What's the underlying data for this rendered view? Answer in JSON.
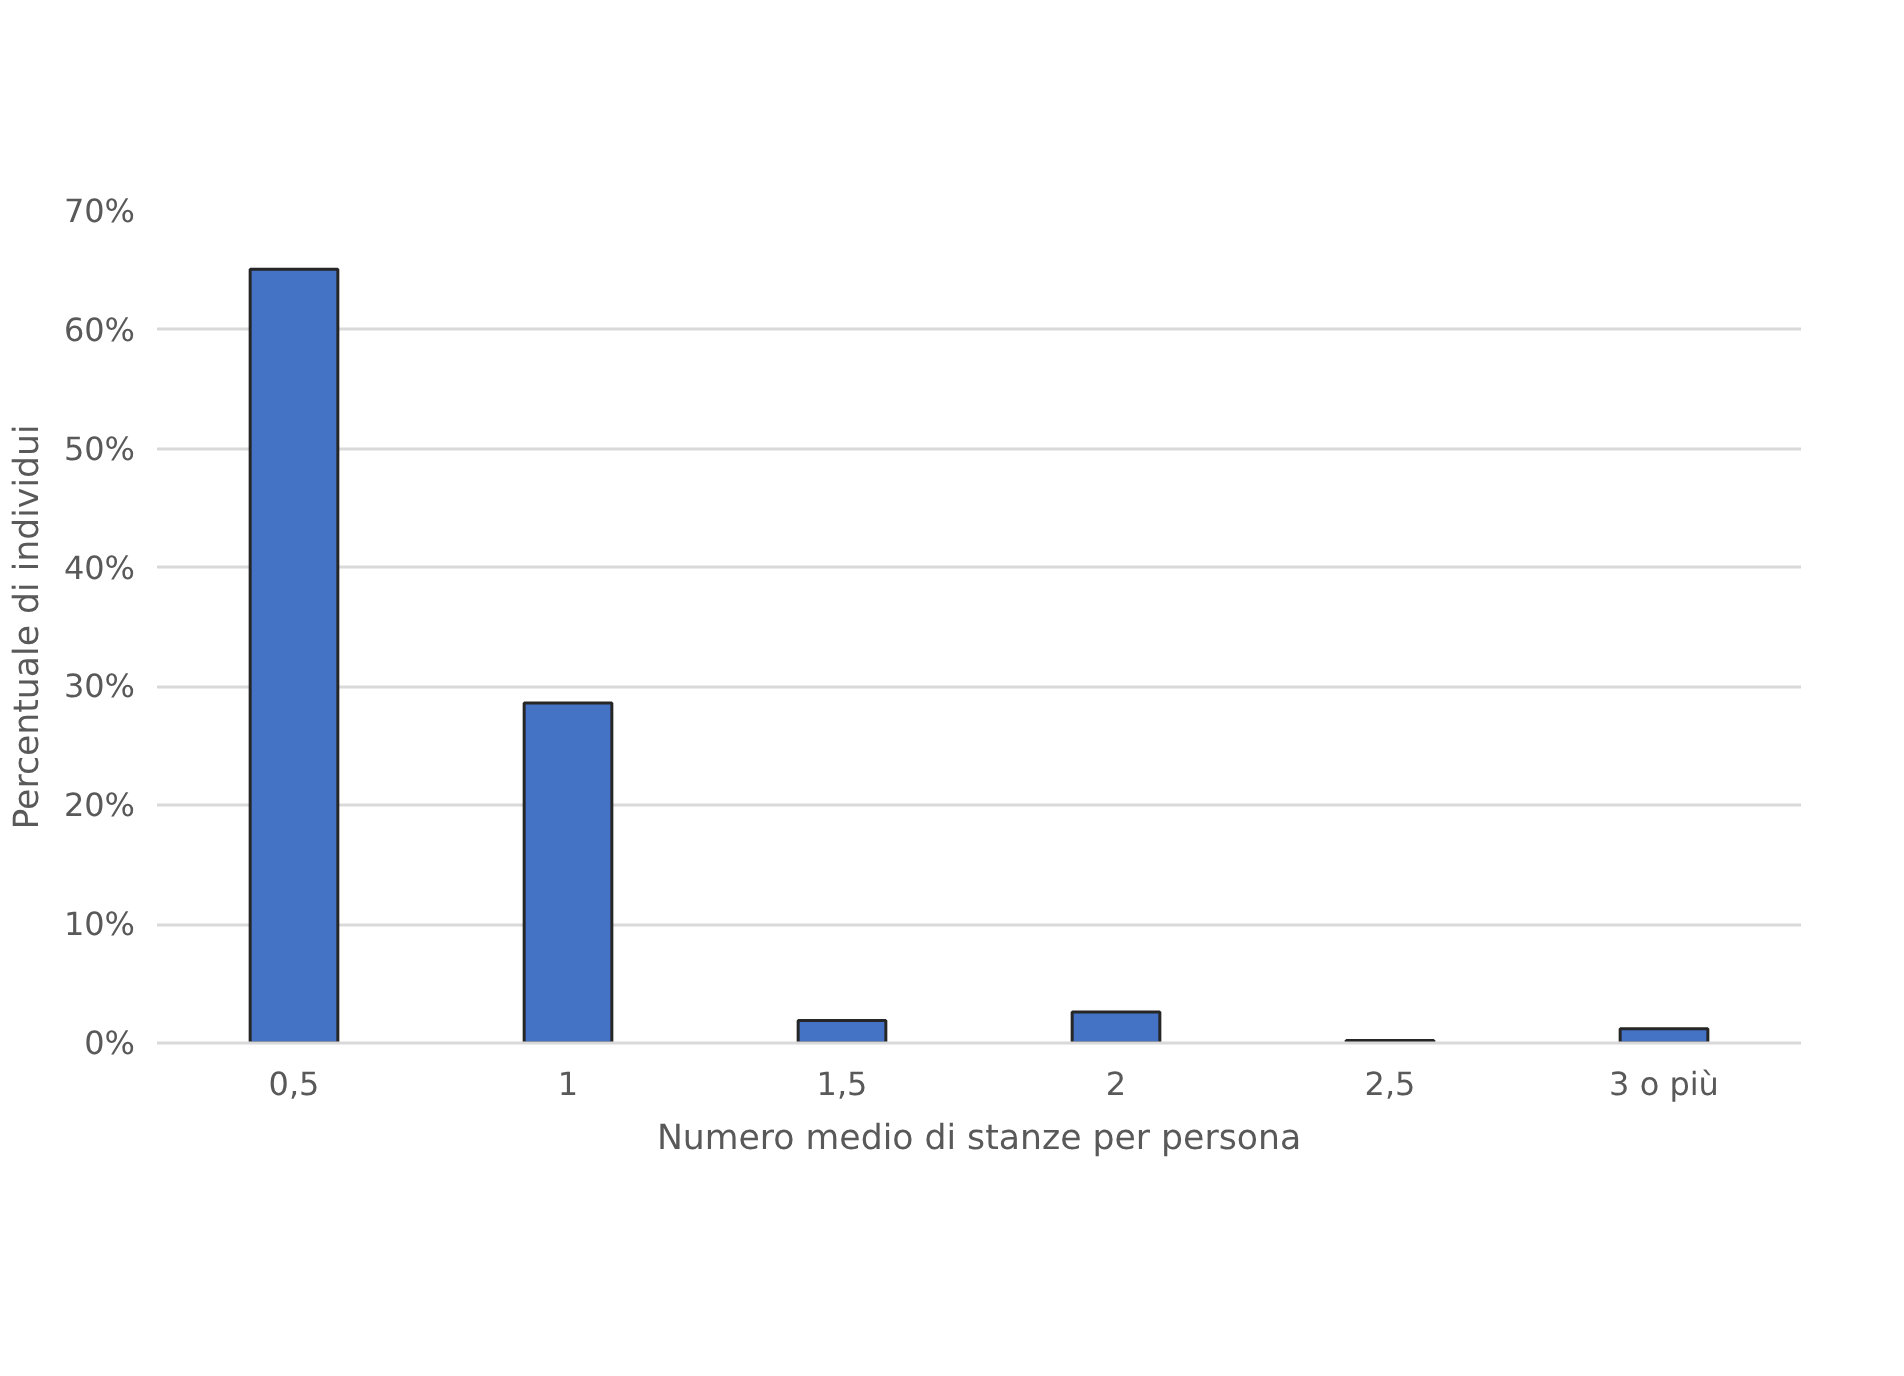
{
  "chart_data": {
    "type": "bar",
    "xlabel": "Numero medio di stanze per persona",
    "ylabel": "Percentuale di individui",
    "categories": [
      "0,5",
      "1",
      "1,5",
      "2",
      "2,5",
      "3 o più"
    ],
    "values": [
      65.1,
      28.6,
      1.9,
      2.6,
      0.2,
      1.2
    ],
    "color": "#4472c4",
    "ylim": [
      0,
      70
    ],
    "yticks": [
      {
        "value": 0,
        "label": "0%"
      },
      {
        "value": 10,
        "label": "10%"
      },
      {
        "value": 20,
        "label": "20%"
      },
      {
        "value": 30,
        "label": "30%"
      },
      {
        "value": 40,
        "label": "40%"
      },
      {
        "value": 50,
        "label": "50%"
      },
      {
        "value": 60,
        "label": "60%"
      },
      {
        "value": 70,
        "label": "70%"
      }
    ],
    "grid": "y"
  }
}
